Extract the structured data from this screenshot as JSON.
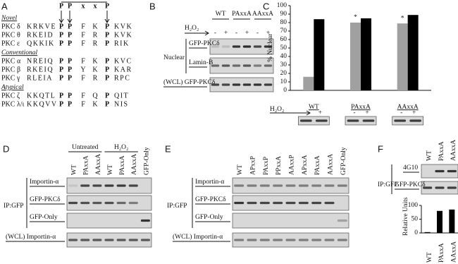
{
  "panel_labels": [
    "A",
    "B",
    "C",
    "D",
    "E",
    "F"
  ],
  "panel_a": {
    "header": [
      "P",
      "P",
      "x",
      "x",
      "P"
    ],
    "groups": [
      {
        "name": "Novel",
        "rows": [
          {
            "label": "PKC δ",
            "pre": "KRKVE",
            "motif": [
              "P",
              "P",
              "F",
              "K",
              "P"
            ],
            "post": "KVK"
          },
          {
            "label": "PKC θ",
            "pre": "RKEID",
            "motif": [
              "P",
              "P",
              "F",
              "R",
              "P"
            ],
            "post": "KVK"
          },
          {
            "label": "PKC ε",
            "pre": "QKKIK",
            "motif": [
              "P",
              "P",
              "F",
              "R",
              "P"
            ],
            "post": "RIK"
          }
        ]
      },
      {
        "name": "Conventional",
        "rows": [
          {
            "label": "PKC α",
            "pre": "NREIQ",
            "motif": [
              "P",
              "P",
              "F",
              "K",
              "P"
            ],
            "post": "KVC"
          },
          {
            "label": "PKC β",
            "pre": "RKEIQ",
            "motif": [
              "P",
              "P",
              "Y",
              "K",
              "P"
            ],
            "post": "KAR"
          },
          {
            "label": "PKC γ",
            "pre": "RLEIA",
            "motif": [
              "P",
              "P",
              "F",
              "R",
              "P"
            ],
            "post": "RPC"
          }
        ]
      },
      {
        "name": "Atypical",
        "rows": [
          {
            "label": "PKC ζ",
            "pre": "KKQTL",
            "motif": [
              "P",
              "P",
              "F",
              "Q",
              "P"
            ],
            "post": "QIT"
          },
          {
            "label": "PKC λ/ι",
            "pre": "KKQVV",
            "motif": [
              "P",
              "P",
              "F",
              "K",
              "P"
            ],
            "post": "NIS"
          }
        ]
      }
    ]
  },
  "panel_b": {
    "treatment": "H₂O₂",
    "lanes": [
      "WT",
      "PAxxA",
      "AAxxA"
    ],
    "signs": [
      "-",
      "+",
      "-",
      "+",
      "-",
      "+"
    ],
    "fraction": "Nuclear",
    "blots": [
      "GFP-PKCδ",
      "Lamin-B",
      "(WCL) GFP-PKCδ"
    ]
  },
  "chart_data": [
    {
      "type": "bar",
      "ylabel": "% Nuclear",
      "categories": [
        "WT",
        "PAxxA",
        "AAxxA"
      ],
      "series": [
        {
          "color": "#a0a0a0",
          "values": [
            16,
            80,
            79
          ]
        },
        {
          "color": "#000000",
          "values": [
            84,
            85,
            89
          ]
        }
      ],
      "annotations": [
        "*",
        "*"
      ],
      "ylim": [
        0,
        100
      ],
      "yticks": [
        0,
        10,
        20,
        30,
        40,
        50,
        60,
        70,
        80,
        90,
        100
      ],
      "treatment": "H₂O₂",
      "signs": [
        "-",
        "+",
        "-",
        "+",
        "-",
        "+"
      ]
    },
    {
      "type": "bar",
      "ylabel": "Relative Units",
      "categories": [
        "WT",
        "PAxxA",
        "AAxxA"
      ],
      "values": [
        3,
        80,
        85
      ],
      "color": "#000000",
      "ylim": [
        0,
        100
      ],
      "yticks": [
        0,
        50,
        100
      ]
    }
  ],
  "panel_d": {
    "groups": [
      "Untreated",
      "H₂O₂"
    ],
    "lanes": [
      "WT",
      "PAxxA",
      "AAxxA",
      "WT",
      "PAxxA",
      "AAxxA",
      "GFP-Only"
    ],
    "ip": "IP:GFP",
    "blots": [
      "Importin-α",
      "GFP-PKCδ",
      "GFP-Only",
      "(WCL) Importin-α"
    ]
  },
  "panel_e": {
    "lanes": [
      "WT",
      "APxxP",
      "PAxxP",
      "PPxxA",
      "AAxxP",
      "APxxA",
      "PAxxA",
      "AAxxA",
      "GFP-Only"
    ],
    "ip": "IP:GFP",
    "blots": [
      "Importin-α",
      "GFP-PKCδ",
      "GFP-Only",
      "(WCL) Importin-α"
    ]
  },
  "panel_f": {
    "lanes": [
      "WT",
      "PAxxA",
      "AAxxA"
    ],
    "ip": "IP:GFP",
    "blots": [
      "4G10",
      "GFP-PKCδ"
    ]
  }
}
